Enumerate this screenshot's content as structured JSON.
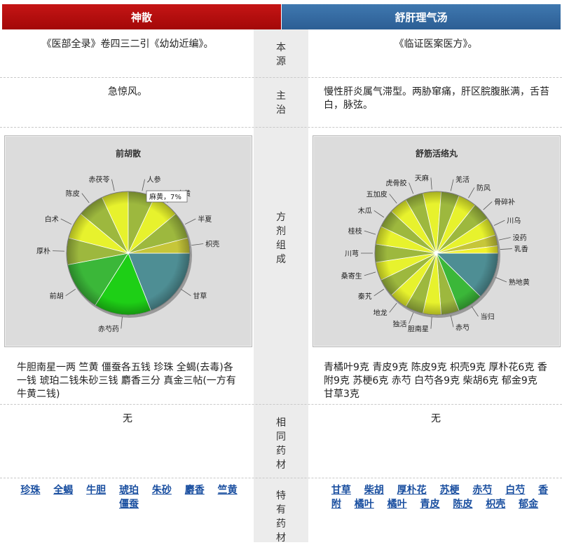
{
  "header": {
    "left_title": "神散",
    "right_title": "舒肝理气汤"
  },
  "rows": {
    "source": {
      "label": "本源",
      "left": "《医部全录》卷四三二引《幼幼近编》。",
      "right": "《临证医案医方》。"
    },
    "indication": {
      "label": "主治",
      "left": "急惊风。",
      "right": "慢性肝炎属气滞型。两胁窜痛，肝区脘腹胀满，舌苔白，脉弦。"
    },
    "formula": {
      "label": "方剂组成",
      "left": "牛胆南星一两 竺黄 僵蚕各五钱 珍珠 全蝎(去毒)各一钱 琥珀二钱朱砂三钱 麝香三分 真金三帖(一方有牛黄二钱)",
      "right": "青橘叶9克 青皮9克 陈皮9克 枳壳9克 厚朴花6克 香附9克 苏梗6克 赤芍 白芍各9克 柴胡6克 郁金9克 甘草3克"
    },
    "same": {
      "label": "相同药材",
      "left": "无",
      "right": "无"
    },
    "unique": {
      "label": "特有药材",
      "left": [
        "珍珠",
        "全蝎",
        "牛胆",
        "琥珀",
        "朱砂",
        "麝香",
        "竺黄",
        "僵蚕"
      ],
      "right": [
        "甘草",
        "柴胡",
        "厚朴花",
        "苏梗",
        "赤芍",
        "白芍",
        "香附",
        "橘叶",
        "橘叶",
        "青皮",
        "陈皮",
        "枳壳",
        "郁金"
      ]
    }
  },
  "chart_data": [
    {
      "type": "pie",
      "title": "前胡散",
      "tooltip": "麻黄，7%",
      "labels": [
        "甘草",
        "赤芍药",
        "前胡",
        "厚朴",
        "白术",
        "陈皮",
        "赤茯苓",
        "人参",
        "麻黄",
        "半夏",
        "枳壳"
      ],
      "values": [
        19,
        15,
        13,
        7,
        7,
        7,
        7,
        7,
        7,
        7,
        4
      ],
      "colors": [
        "#4e8e94",
        "#1ecf16",
        "#3bb739",
        "#9db83e",
        "#e7f22d",
        "#9db83e",
        "#e7f22d",
        "#9db83e",
        "#e7f22d",
        "#9db83e",
        "#c6c639"
      ]
    },
    {
      "type": "pie",
      "title": "舒筋活络丸",
      "labels": [
        "熟地黄",
        "当归",
        "赤芍",
        "胆南星",
        "独活",
        "地龙",
        "秦艽",
        "桑寄生",
        "川芎",
        "桂枝",
        "木瓜",
        "五加皮",
        "虎骨胶",
        "天麻",
        "羌活",
        "防风",
        "骨碎补",
        "川乌",
        "没药",
        "乳香"
      ],
      "values": [
        13,
        7,
        5,
        5,
        5,
        5,
        5,
        5,
        5,
        5,
        5,
        5,
        5,
        5,
        5,
        5,
        5,
        5,
        3,
        2
      ],
      "colors": [
        "#4e8e94",
        "#3bb739",
        "#9db83e",
        "#e7f22d",
        "#9db83e",
        "#e7f22d",
        "#9db83e",
        "#e7f22d",
        "#9db83e",
        "#e7f22d",
        "#9db83e",
        "#e7f22d",
        "#9db83e",
        "#e7f22d",
        "#9db83e",
        "#e7f22d",
        "#9db83e",
        "#e7f22d",
        "#c6c639",
        "#f2f22a"
      ]
    }
  ]
}
